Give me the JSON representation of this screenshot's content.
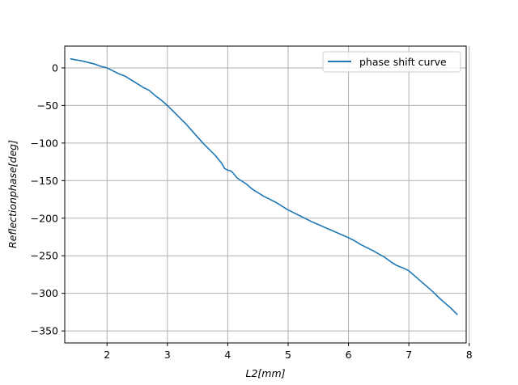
{
  "chart_data": {
    "type": "line",
    "xlabel": "L2[mm]",
    "ylabel": "Reflectionphase[deg]",
    "xlim": [
      1.3,
      7.95
    ],
    "ylim": [
      -366,
      29
    ],
    "xticks": [
      2,
      3,
      4,
      5,
      6,
      7,
      8
    ],
    "yticks": [
      0,
      -50,
      -100,
      -150,
      -200,
      -250,
      -300,
      -350
    ],
    "grid": true,
    "legend_position": "top-right",
    "series": [
      {
        "name": "phase shift curve",
        "color": "#1f77b4",
        "x": [
          1.4,
          1.6,
          1.8,
          1.9,
          2.0,
          2.1,
          2.2,
          2.3,
          2.4,
          2.5,
          2.6,
          2.7,
          2.8,
          2.9,
          3.0,
          3.1,
          3.2,
          3.3,
          3.4,
          3.5,
          3.6,
          3.7,
          3.8,
          3.9,
          3.95,
          4.0,
          4.05,
          4.1,
          4.15,
          4.2,
          4.3,
          4.4,
          4.5,
          4.6,
          4.7,
          4.8,
          4.9,
          5.0,
          5.2,
          5.4,
          5.6,
          5.8,
          6.0,
          6.1,
          6.2,
          6.4,
          6.6,
          6.7,
          6.8,
          6.9,
          7.0,
          7.1,
          7.2,
          7.3,
          7.4,
          7.5,
          7.6,
          7.7,
          7.8
        ],
        "y": [
          12,
          9,
          5,
          2,
          0,
          -4,
          -8,
          -11,
          -16,
          -21,
          -26,
          -30,
          -37,
          -43,
          -50,
          -58,
          -66,
          -74,
          -83,
          -92,
          -101,
          -109,
          -117,
          -127,
          -134,
          -136,
          -137,
          -141,
          -146,
          -149,
          -154,
          -161,
          -166,
          -171,
          -175,
          -179,
          -184,
          -189,
          -197,
          -205,
          -212,
          -219,
          -226,
          -230,
          -235,
          -243,
          -252,
          -258,
          -263,
          -266,
          -270,
          -277,
          -284,
          -291,
          -298,
          -306,
          -313,
          -320,
          -328
        ]
      }
    ]
  }
}
